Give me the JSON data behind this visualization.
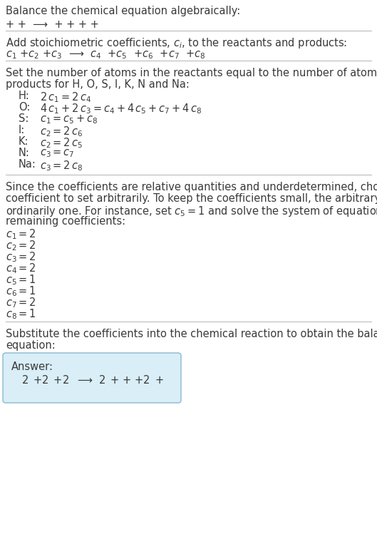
{
  "bg_color": "#ffffff",
  "text_color": "#3a3a3a",
  "title": "Balance the chemical equation algebraically:",
  "line1": "+ +  ⟶  + + + +",
  "section1_title": "Add stoichiometric coefficients, $c_i$, to the reactants and products:",
  "section1_eq": "$c_1$ +$c_2$ +$c_3$  ⟶  $c_4$  +$c_5$  +$c_6$  +$c_7$  +$c_8$",
  "section2_intro": "Set the number of atoms in the reactants equal to the number of atoms in the\nproducts for H, O, S, I, K, N and Na:",
  "equations": [
    [
      "H:",
      "$2\\,c_1 = 2\\,c_4$"
    ],
    [
      "O:",
      "$4\\,c_1 + 2\\,c_3 = c_4 + 4\\,c_5 + c_7 + 4\\,c_8$"
    ],
    [
      "S:",
      "$c_1 = c_5 + c_8$"
    ],
    [
      "I:",
      "$c_2 = 2\\,c_6$"
    ],
    [
      "K:",
      "$c_2 = 2\\,c_5$"
    ],
    [
      "N:",
      "$c_3 = c_7$"
    ],
    [
      "Na:",
      "$c_3 = 2\\,c_8$"
    ]
  ],
  "section3_text": "Since the coefficients are relative quantities and underdetermined, choose a\ncoefficient to set arbitrarily. To keep the coefficients small, the arbitrary value is\nordinarily one. For instance, set $c_5 = 1$ and solve the system of equations for the\nremaining coefficients:",
  "coefficients": [
    "$c_1 = 2$",
    "$c_2 = 2$",
    "$c_3 = 2$",
    "$c_4 = 2$",
    "$c_5 = 1$",
    "$c_6 = 1$",
    "$c_7 = 2$",
    "$c_8 = 1$"
  ],
  "section4_text": "Substitute the coefficients into the chemical reaction to obtain the balanced\nequation:",
  "answer_label": "Answer:",
  "answer_eq": "$2\\,$ +$2\\,$ +$2\\,$  ⟶  $2\\,$ + + +$2\\,$ +",
  "answer_box_facecolor": "#d9eef7",
  "answer_box_edgecolor": "#8ab8d0",
  "separator_color": "#bbbbbb",
  "fontsize": 10.5,
  "eq_label_indent": 18,
  "eq_text_indent": 48
}
